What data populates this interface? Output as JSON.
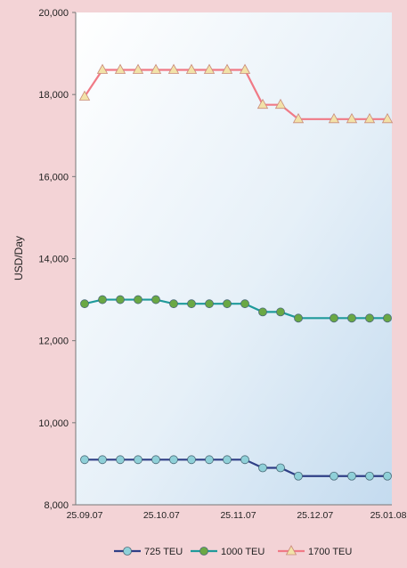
{
  "chart_data": {
    "type": "line",
    "ylabel": "USD/Day",
    "xlabel": "",
    "ylim": [
      8000,
      20000
    ],
    "yticks": [
      "8,000",
      "10,000",
      "12,000",
      "14,000",
      "16,000",
      "18,000",
      "20,000"
    ],
    "ytick_values": [
      8000,
      10000,
      12000,
      14000,
      16000,
      18000,
      20000
    ],
    "xticks": [
      "25.09.07",
      "25.10.07",
      "25.11.07",
      "25.12.07",
      "25.01.08"
    ],
    "x_points": 18,
    "legend_position": "bottom",
    "series": [
      {
        "name": "725 TEU",
        "color": "#2f3f86",
        "marker_color": "#8fd0d8",
        "marker": "circle",
        "values": [
          9100,
          9100,
          9100,
          9100,
          9100,
          9100,
          9100,
          9100,
          9100,
          9100,
          8900,
          8900,
          8700,
          null,
          8700,
          8700,
          8700,
          8700
        ]
      },
      {
        "name": "1000 TEU",
        "color": "#1f9a9a",
        "marker_color": "#6aa844",
        "marker": "circle",
        "values": [
          12900,
          13000,
          13000,
          13000,
          13000,
          12900,
          12900,
          12900,
          12900,
          12900,
          12700,
          12700,
          12550,
          null,
          12550,
          12550,
          12550,
          12550
        ]
      },
      {
        "name": "1700 TEU",
        "color": "#f07a86",
        "marker_color": "#f2e2a8",
        "marker": "triangle",
        "values": [
          17950,
          18600,
          18600,
          18600,
          18600,
          18600,
          18600,
          18600,
          18600,
          18600,
          17750,
          17750,
          17400,
          null,
          17400,
          17400,
          17400,
          17400
        ]
      }
    ]
  }
}
